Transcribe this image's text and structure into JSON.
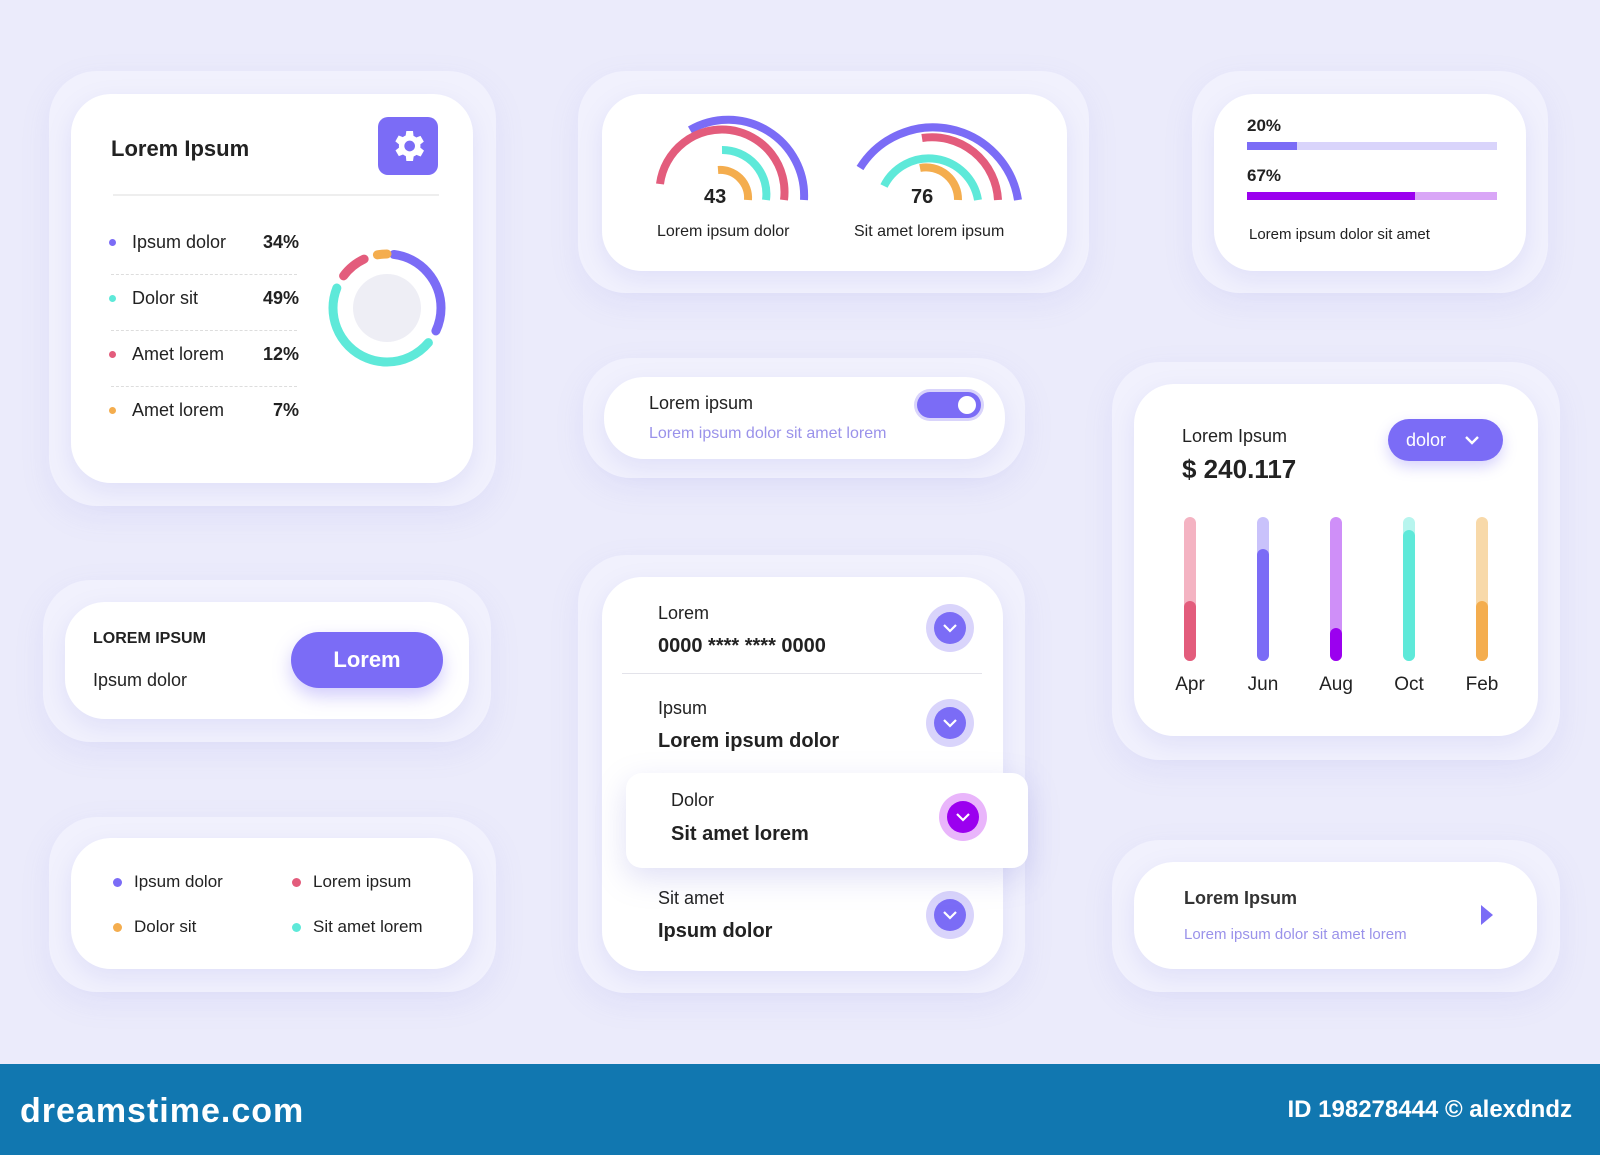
{
  "stats_card": {
    "title": "Lorem Ipsum",
    "settings_icon": "gear-icon",
    "items": [
      {
        "label": "Ipsum dolor",
        "value": "34%",
        "percent": 34,
        "color": "#7b6cf6"
      },
      {
        "label": "Dolor sit",
        "value": "49%",
        "percent": 49,
        "color": "#5ee9d9"
      },
      {
        "label": "Amet lorem",
        "value": "12%",
        "percent": 12,
        "color": "#e35c7c"
      },
      {
        "label": "Amet lorem",
        "value": "7%",
        "percent": 7,
        "color": "#f4ad4e"
      }
    ]
  },
  "gauges": [
    {
      "value": "43",
      "label": "Lorem ipsum dolor"
    },
    {
      "value": "76",
      "label": "Sit amet lorem ipsum"
    }
  ],
  "progress_card": {
    "bars": [
      {
        "label": "20%",
        "percent": 20,
        "color": "#7b6cf6",
        "track": "#d9d4fb"
      },
      {
        "label": "67%",
        "percent": 67,
        "color": "#9b00ef",
        "track": "#d9a6f7"
      }
    ],
    "caption": "Lorem ipsum dolor sit amet"
  },
  "toggle_card": {
    "title": "Lorem ipsum",
    "subtitle": "Lorem ipsum dolor sit amet lorem",
    "on": true
  },
  "chart_card": {
    "title": "Lorem Ipsum",
    "amount": "$ 240.117",
    "dropdown": "dolor"
  },
  "chart_data": {
    "type": "bar",
    "categories": [
      "Apr",
      "Jun",
      "Aug",
      "Oct",
      "Feb"
    ],
    "values": [
      0.42,
      0.78,
      0.23,
      0.91,
      0.42
    ],
    "ylim": [
      0,
      1
    ],
    "colors": [
      "#e35c7c",
      "#7b6cf6",
      "#9b00ef",
      "#5ee9d9",
      "#f4ad4e"
    ],
    "tracks": [
      "#f4b3c2",
      "#c9c2fb",
      "#cf8ff8",
      "#b7f5ee",
      "#f8d9a9"
    ]
  },
  "button_card": {
    "title": "LOREM IPSUM",
    "subtitle": "Ipsum dolor",
    "button": "Lorem"
  },
  "accordion": [
    {
      "label": "Lorem",
      "value": "0000 **** **** 0000"
    },
    {
      "label": "Ipsum",
      "value": "Lorem ipsum dolor"
    },
    {
      "label": "Dolor",
      "value": "Sit amet lorem",
      "active": true
    },
    {
      "label": "Sit amet",
      "value": "Ipsum dolor"
    }
  ],
  "legend_card": [
    {
      "label": "Ipsum dolor",
      "color": "#7b6cf6"
    },
    {
      "label": "Lorem ipsum",
      "color": "#e35c7c"
    },
    {
      "label": "Dolor sit",
      "color": "#f4ad4e"
    },
    {
      "label": "Sit amet lorem",
      "color": "#5ee9d9"
    }
  ],
  "arrow_card": {
    "title": "Lorem Ipsum",
    "subtitle": "Lorem ipsum dolor sit amet lorem"
  },
  "footer": {
    "brand": "dreamstime.com",
    "id": "ID 198278444 © alexdndz"
  }
}
